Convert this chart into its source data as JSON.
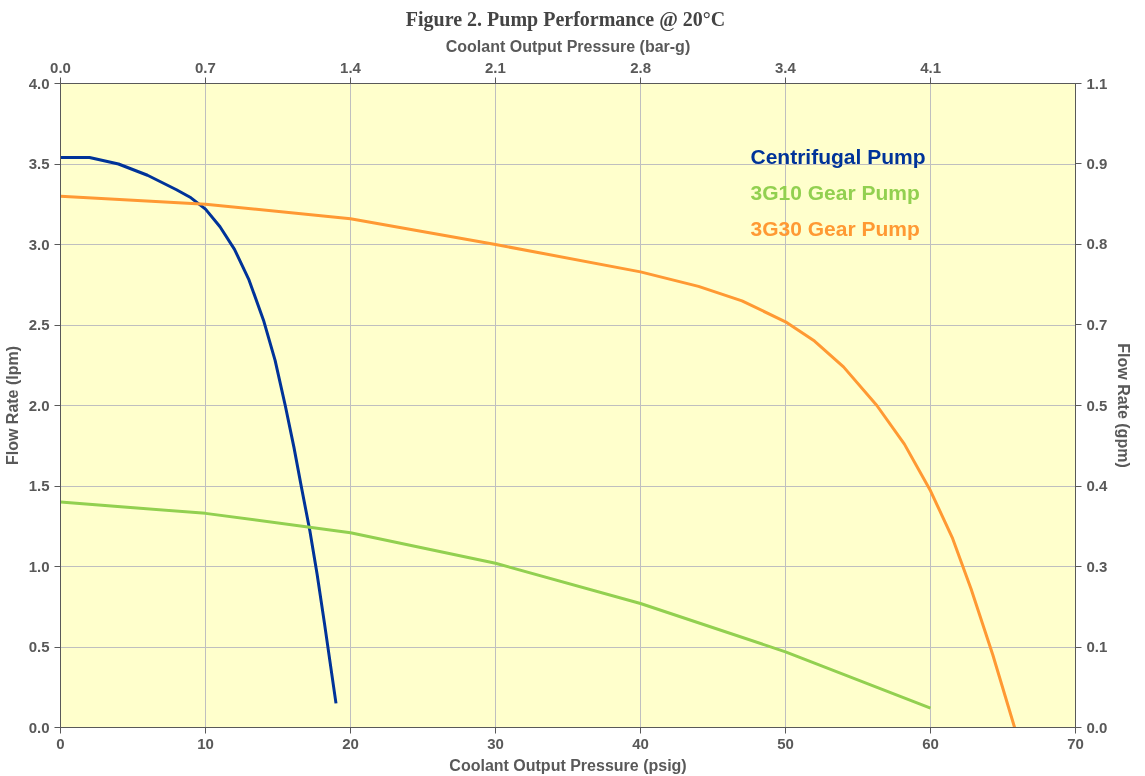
{
  "chart_data": {
    "type": "line",
    "title": "Figure 2.  Pump Performance @ 20°C",
    "xlabel": "Coolant Output Pressure (psig)",
    "ylabel": "Flow Rate (lpm)",
    "y2label": "Flow Rate (gpm)",
    "x2label": "Coolant Output Pressure (bar-g)",
    "xlim": [
      0,
      70
    ],
    "xticks": [
      0,
      10,
      20,
      30,
      40,
      50,
      60,
      70
    ],
    "ylim": [
      0,
      4
    ],
    "yticks": [
      {
        "value": 0,
        "label": "0.0"
      },
      0.5,
      {
        "value": 1,
        "label": "1.0"
      },
      1.5,
      {
        "value": 2,
        "label": "2.0"
      },
      2.5,
      {
        "value": 3,
        "label": "3.0"
      },
      3.5,
      {
        "value": 4,
        "label": "4.0"
      }
    ],
    "x2lim": [
      0,
      4.826
    ],
    "x2ticks": [
      {
        "value": 0,
        "label": "0.0"
      },
      {
        "value": 0.689,
        "label": "0.7"
      },
      {
        "value": 1.379,
        "label": "1.4"
      },
      {
        "value": 2.068,
        "label": "2.1"
      },
      {
        "value": 2.758,
        "label": "2.8"
      },
      {
        "value": 3.447,
        "label": "3.4"
      },
      {
        "value": 4.137,
        "label": "4.1"
      }
    ],
    "y2lim": [
      0,
      1.057
    ],
    "y2ticks": [
      {
        "value": 0,
        "label": "0.0"
      },
      {
        "value": 0.132,
        "label": "0.1"
      },
      {
        "value": 0.264,
        "label": "0.3"
      },
      {
        "value": 0.396,
        "label": "0.4"
      },
      {
        "value": 0.528,
        "label": "0.5"
      },
      {
        "value": 0.661,
        "label": "0.7"
      },
      {
        "value": 0.793,
        "label": "0.8"
      },
      {
        "value": 0.925,
        "label": "0.9"
      },
      {
        "value": 1.057,
        "label": "1.1"
      }
    ],
    "grid": true,
    "legend": "top right",
    "marker": "none",
    "line_style": "solid",
    "series": [
      {
        "name": "Centrifugal Pump",
        "color": "#003399",
        "x": [
          0,
          2,
          4,
          6,
          8,
          9,
          10,
          11,
          12,
          13,
          14,
          14.8,
          15.5,
          16.1,
          16.6,
          17.2,
          17.7,
          18.2,
          18.6,
          19
        ],
        "values": [
          3.54,
          3.54,
          3.5,
          3.43,
          3.34,
          3.29,
          3.22,
          3.11,
          2.97,
          2.78,
          2.53,
          2.28,
          2.0,
          1.74,
          1.5,
          1.22,
          0.95,
          0.65,
          0.4,
          0.15
        ]
      },
      {
        "name": "3G10 Gear Pump",
        "color": "#92d050",
        "x": [
          0,
          10,
          20,
          30,
          40,
          50,
          60
        ],
        "values": [
          1.4,
          1.33,
          1.21,
          1.02,
          0.77,
          0.47,
          0.12
        ]
      },
      {
        "name": "3G30 Gear Pump",
        "color": "#ff9933",
        "x": [
          0,
          10,
          20,
          30,
          40,
          44,
          47,
          50,
          52,
          54,
          56.3,
          58.2,
          60,
          61.5,
          62.8,
          64.3,
          65.8
        ],
        "values": [
          3.3,
          3.25,
          3.16,
          3.0,
          2.83,
          2.74,
          2.65,
          2.52,
          2.4,
          2.24,
          2.0,
          1.76,
          1.47,
          1.18,
          0.86,
          0.45,
          0.0
        ]
      }
    ]
  }
}
